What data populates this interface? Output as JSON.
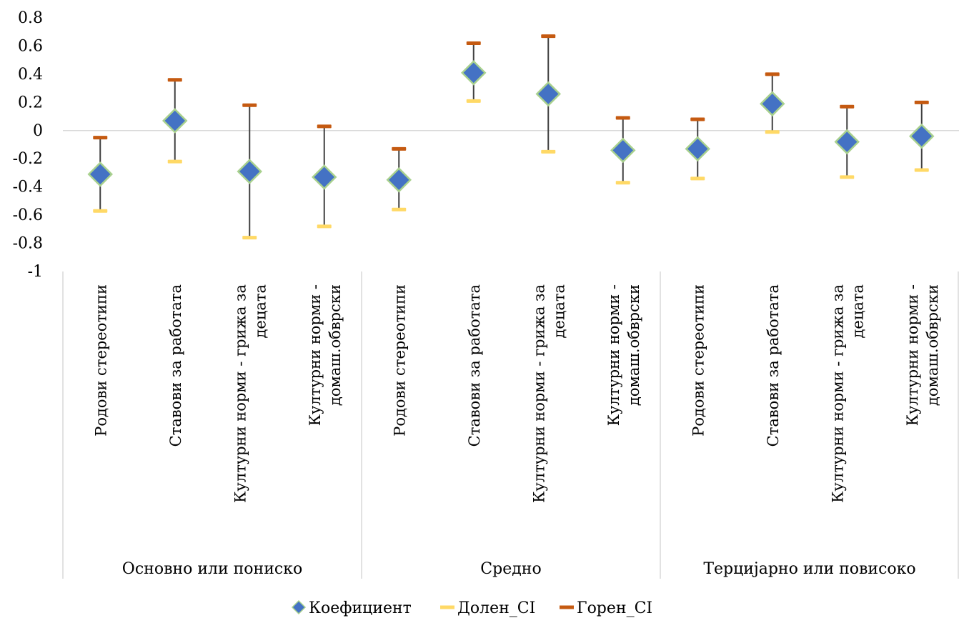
{
  "chart_data": {
    "type": "error-bar",
    "title": "",
    "xlabel": "",
    "ylabel": "",
    "ylim": [
      -1,
      0.8
    ],
    "yticks": [
      0.8,
      0.6,
      0.4,
      0.2,
      0,
      -0.2,
      -0.4,
      -0.6,
      -0.8,
      -1
    ],
    "yticklabels": [
      "0.8",
      "0.6",
      "0.4",
      "0.2",
      "0",
      "-0.2",
      "-0.4",
      "-0.6",
      "-0.8",
      "-1"
    ],
    "grid": false,
    "legend_position": "bottom",
    "groups": [
      "Основно или пониско",
      "Средно",
      "Терцијарно или повисоко"
    ],
    "categories": [
      {
        "line1": "Родови стереотипи",
        "line2": ""
      },
      {
        "line1": "Ставови за работата",
        "line2": ""
      },
      {
        "line1": "Културни норми - грижа за",
        "line2": "децата"
      },
      {
        "line1": "Културни норми -",
        "line2": "домаш.обврски"
      },
      {
        "line1": "Родови стереотипи",
        "line2": ""
      },
      {
        "line1": "Ставови за работата",
        "line2": ""
      },
      {
        "line1": "Културни норми - грижа за",
        "line2": "децата"
      },
      {
        "line1": "Културни норми -",
        "line2": "домаш.обврски"
      },
      {
        "line1": "Родови стереотипи",
        "line2": ""
      },
      {
        "line1": "Ставови за работата",
        "line2": ""
      },
      {
        "line1": "Културни норми - грижа за",
        "line2": "децата"
      },
      {
        "line1": "Културни норми -",
        "line2": "домаш.обврски"
      }
    ],
    "series": [
      {
        "name": "Коефициент",
        "color": "#4472C4",
        "outline": "#A9D18E",
        "values": [
          -0.31,
          0.07,
          -0.29,
          -0.33,
          -0.35,
          0.41,
          0.26,
          -0.14,
          -0.13,
          0.19,
          -0.08,
          -0.04
        ]
      },
      {
        "name": "Долен_CI",
        "color": "#FFD966",
        "values": [
          -0.57,
          -0.22,
          -0.76,
          -0.68,
          -0.56,
          0.21,
          -0.15,
          -0.37,
          -0.34,
          -0.01,
          -0.33,
          -0.28
        ]
      },
      {
        "name": "Горен_CI",
        "color": "#C55A11",
        "values": [
          -0.05,
          0.36,
          0.18,
          0.03,
          -0.13,
          0.62,
          0.67,
          0.09,
          0.08,
          0.4,
          0.17,
          0.2
        ]
      }
    ]
  }
}
